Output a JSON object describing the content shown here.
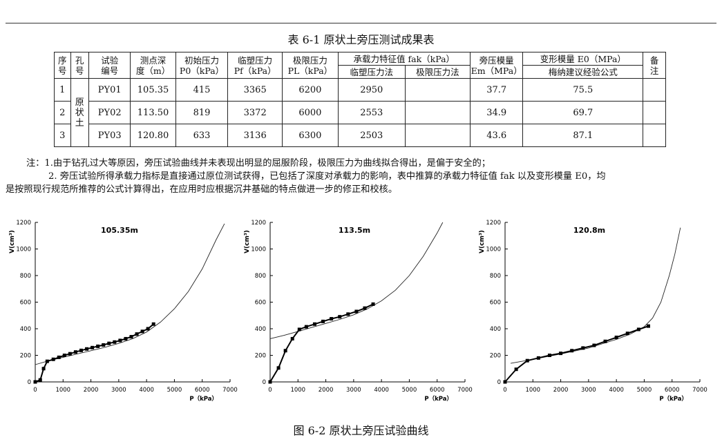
{
  "table": {
    "title": "表 6-1    原状土旁压测试成果表",
    "headers": {
      "seq": [
        "序",
        "号"
      ],
      "hole": [
        "孔",
        "号"
      ],
      "test_id": [
        "试验",
        "编号"
      ],
      "depth": [
        "测点深",
        "度（m）"
      ],
      "p0": [
        "初始压力",
        "P0（kPa）"
      ],
      "pf": [
        "临塑压力",
        "Pf（kPa）"
      ],
      "pl": [
        "极限压力",
        "PL（kPa）"
      ],
      "fak_group": "承载力特征值 fak（kPa）",
      "fak_pf": "临塑压力法",
      "fak_pl": "极限压力法",
      "em": [
        "旁压模量",
        "Em（MPa）"
      ],
      "e0_group": "变形模量 E0（MPa）",
      "e0_method": "梅纳建议经验公式",
      "remark": [
        "备",
        "注"
      ]
    },
    "hole_label": [
      "原",
      "状",
      "土"
    ],
    "rows": [
      {
        "seq": "1",
        "id": "PY01",
        "depth": "105.35",
        "p0": "415",
        "pf": "3365",
        "pl": "6200",
        "fak_pf": "2950",
        "fak_pl": "",
        "em": "37.7",
        "e0": "75.5",
        "remark": ""
      },
      {
        "seq": "2",
        "id": "PY02",
        "depth": "113.50",
        "p0": "819",
        "pf": "3372",
        "pl": "6000",
        "fak_pf": "2553",
        "fak_pl": "",
        "em": "34.9",
        "e0": "69.7",
        "remark": ""
      },
      {
        "seq": "3",
        "id": "PY03",
        "depth": "120.80",
        "p0": "633",
        "pf": "3136",
        "pl": "6300",
        "fak_pf": "2503",
        "fak_pl": "",
        "em": "43.6",
        "e0": "87.1",
        "remark": ""
      }
    ]
  },
  "notes": {
    "line1": "注：1.由于钻孔过大等原因，旁压试验曲线并未表现出明显的屈服阶段，极限压力为曲线拟合得出，是偏于安全的；",
    "line2": "2. 旁压试验所得承载力指标是直接通过原位测试获得，已包括了深度对承载力的影响，表中推算的承载力特征值 fak 以及变形模量 E0，均",
    "line3": "是按照现行规范所推荐的公式计算得出，在应用时应根据沉井基础的特点做进一步的修正和校核。"
  },
  "chart_data": [
    {
      "type": "line",
      "title": "105.35m",
      "xlabel": "P（kPa）",
      "ylabel": "V(cm³)",
      "xlim": [
        0,
        7000
      ],
      "ylim": [
        0,
        1200
      ],
      "xticks": [
        0,
        1000,
        2000,
        3000,
        4000,
        5000,
        6000,
        7000
      ],
      "yticks": [
        0,
        200,
        400,
        600,
        800,
        1000,
        1200
      ],
      "series": [
        {
          "x": [
            0,
            180,
            300,
            430,
            650,
            850,
            1050,
            1250,
            1450,
            1650,
            1850,
            2050,
            2250,
            2450,
            2650,
            2850,
            3050,
            3250,
            3450,
            3650,
            3850,
            4050,
            4250
          ],
          "y": [
            0,
            15,
            100,
            155,
            170,
            185,
            200,
            212,
            225,
            237,
            248,
            258,
            268,
            278,
            290,
            300,
            312,
            325,
            340,
            360,
            380,
            400,
            435
          ]
        }
      ],
      "fit": {
        "x": [
          0,
          500,
          1000,
          1500,
          2000,
          2500,
          3000,
          3500,
          4000,
          4500,
          5000,
          5500,
          6000,
          6500,
          6800
        ],
        "y": [
          130,
          160,
          185,
          210,
          235,
          260,
          290,
          325,
          375,
          450,
          550,
          680,
          850,
          1070,
          1190
        ]
      }
    },
    {
      "type": "line",
      "title": "113.5m",
      "xlabel": "P（kPa）",
      "ylabel": "V(cm³)",
      "xlim": [
        0,
        7000
      ],
      "ylim": [
        0,
        1200
      ],
      "xticks": [
        0,
        1000,
        2000,
        3000,
        4000,
        5000,
        6000,
        7000
      ],
      "yticks": [
        0,
        200,
        400,
        600,
        800,
        1000,
        1200
      ],
      "series": [
        {
          "x": [
            0,
            300,
            550,
            800,
            1050,
            1300,
            1600,
            1900,
            2200,
            2500,
            2800,
            3100,
            3400,
            3700
          ],
          "y": [
            0,
            105,
            235,
            325,
            395,
            415,
            435,
            455,
            475,
            490,
            510,
            530,
            555,
            585
          ]
        }
      ],
      "fit": {
        "x": [
          0,
          500,
          1000,
          1500,
          2000,
          2500,
          3000,
          3500,
          4000,
          4500,
          5000,
          5500,
          6000,
          6200
        ],
        "y": [
          325,
          350,
          380,
          410,
          440,
          470,
          505,
          550,
          610,
          690,
          800,
          945,
          1120,
          1200
        ]
      }
    },
    {
      "type": "line",
      "title": "120.8m",
      "xlabel": "P（kPa）",
      "ylabel": "V(cm³)",
      "xlim": [
        0,
        7000
      ],
      "ylim": [
        0,
        1200
      ],
      "xticks": [
        0,
        1000,
        2000,
        3000,
        4000,
        5000,
        6000,
        7000
      ],
      "yticks": [
        0,
        200,
        400,
        600,
        800,
        1000,
        1200
      ],
      "series": [
        {
          "x": [
            0,
            400,
            800,
            1200,
            1600,
            2000,
            2400,
            2800,
            3200,
            3600,
            4000,
            4400,
            4800,
            5150
          ],
          "y": [
            0,
            95,
            160,
            180,
            200,
            215,
            235,
            255,
            275,
            305,
            335,
            365,
            395,
            420
          ]
        }
      ],
      "fit": {
        "x": [
          200,
          1000,
          2000,
          3000,
          4000,
          4500,
          5000,
          5300,
          5600,
          5900,
          6100,
          6300
        ],
        "y": [
          140,
          170,
          210,
          255,
          320,
          360,
          415,
          480,
          600,
          800,
          960,
          1160
        ]
      }
    }
  ],
  "figure": {
    "caption": "图 6-2    原状土旁压试验曲线"
  }
}
